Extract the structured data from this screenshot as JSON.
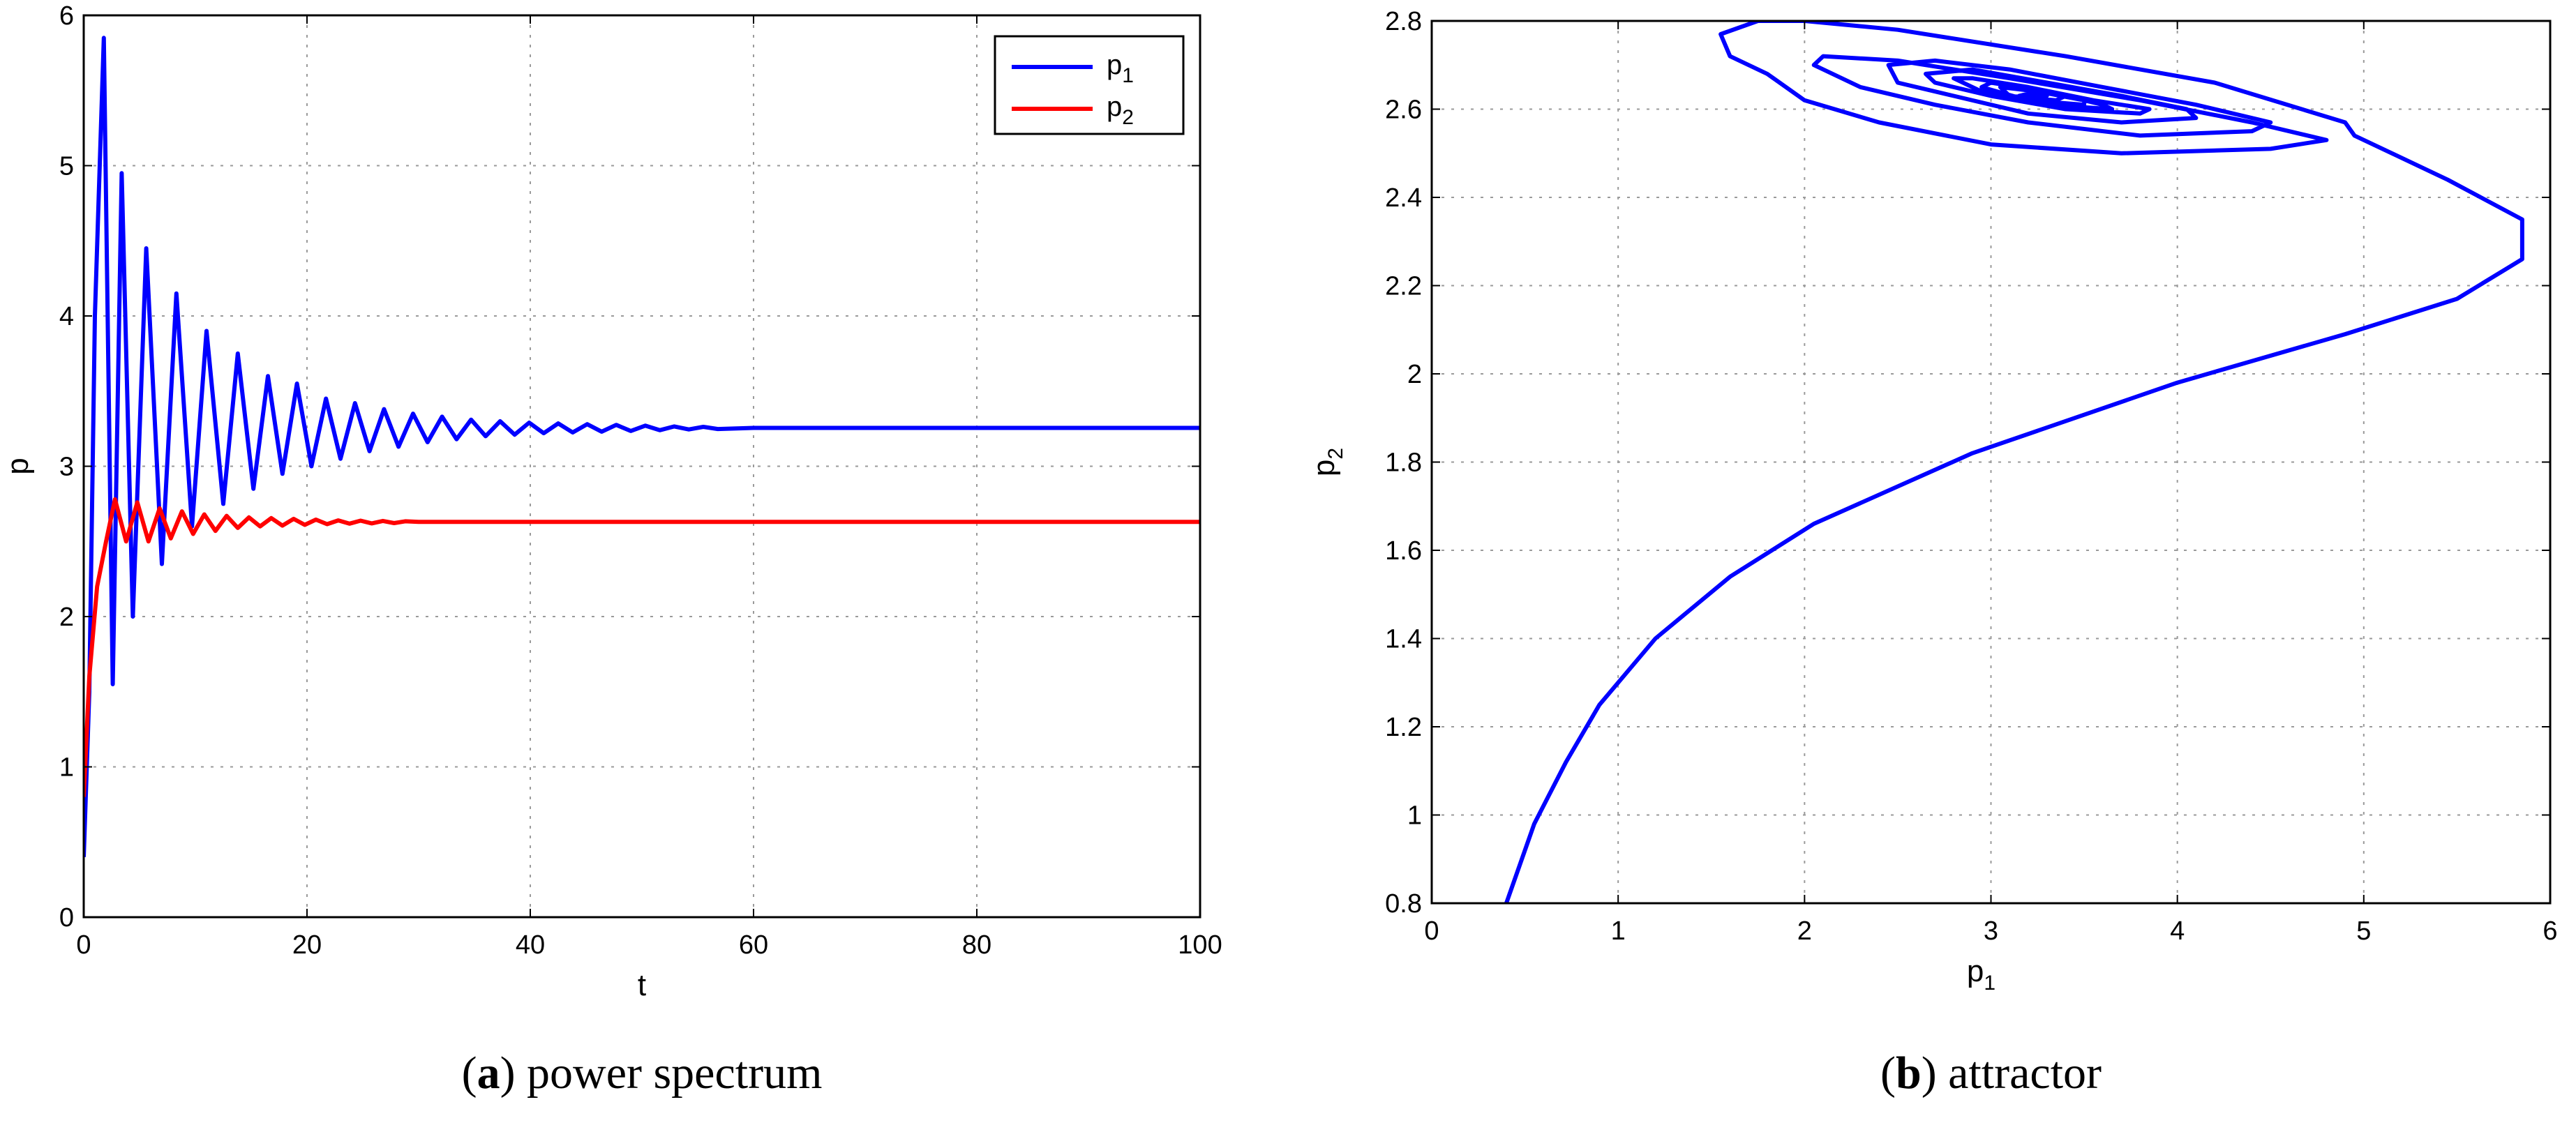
{
  "chart_data": [
    {
      "type": "line",
      "xlabel": "t",
      "ylabel": "p",
      "xlim": [
        0,
        100
      ],
      "ylim": [
        0,
        6
      ],
      "xticks": [
        0,
        20,
        40,
        60,
        80,
        100
      ],
      "yticks": [
        0,
        1,
        2,
        3,
        4,
        5,
        6
      ],
      "grid": true,
      "legend_position": "top-right",
      "caption": {
        "letter": "a",
        "text": " power spectrum"
      },
      "series": [
        {
          "name": "p1",
          "label_main": "p",
          "label_sub": "1",
          "color": "#0000ff",
          "x": [
            0,
            0.5,
            1,
            1.8,
            2.6,
            3.4,
            4.4,
            5.6,
            7.0,
            8.3,
            9.7,
            11.0,
            12.5,
            13.8,
            15.2,
            16.5,
            17.8,
            19.1,
            20.4,
            21.7,
            23.0,
            24.3,
            25.6,
            26.9,
            28.2,
            29.5,
            30.8,
            32.1,
            33.4,
            34.7,
            36.0,
            37.3,
            38.6,
            39.9,
            41.2,
            42.5,
            43.8,
            45.1,
            46.4,
            47.7,
            49.0,
            50.3,
            51.6,
            52.9,
            54.2,
            55.5,
            56.8,
            60,
            80,
            100
          ],
          "y": [
            0.4,
            1.5,
            4.0,
            5.85,
            1.55,
            4.95,
            2.0,
            4.45,
            2.35,
            4.15,
            2.6,
            3.9,
            2.75,
            3.75,
            2.85,
            3.6,
            2.95,
            3.55,
            3.0,
            3.45,
            3.05,
            3.42,
            3.1,
            3.38,
            3.13,
            3.35,
            3.16,
            3.33,
            3.18,
            3.31,
            3.2,
            3.3,
            3.21,
            3.29,
            3.22,
            3.285,
            3.225,
            3.28,
            3.23,
            3.275,
            3.235,
            3.27,
            3.24,
            3.265,
            3.245,
            3.262,
            3.248,
            3.255,
            3.255,
            3.255
          ]
        },
        {
          "name": "p2",
          "label_main": "p",
          "label_sub": "2",
          "color": "#ff0000",
          "x": [
            0,
            0.5,
            1.2,
            2.0,
            2.8,
            3.8,
            4.8,
            5.8,
            6.8,
            7.8,
            8.8,
            9.8,
            10.8,
            11.8,
            12.8,
            13.8,
            14.8,
            15.8,
            16.8,
            17.8,
            18.8,
            19.8,
            20.8,
            21.8,
            22.8,
            23.8,
            24.8,
            25.8,
            26.8,
            27.8,
            28.8,
            30,
            40,
            60,
            80,
            100
          ],
          "y": [
            0.8,
            1.6,
            2.2,
            2.5,
            2.78,
            2.5,
            2.76,
            2.5,
            2.72,
            2.52,
            2.7,
            2.55,
            2.68,
            2.57,
            2.67,
            2.59,
            2.66,
            2.6,
            2.655,
            2.605,
            2.65,
            2.61,
            2.645,
            2.615,
            2.64,
            2.618,
            2.638,
            2.62,
            2.636,
            2.622,
            2.634,
            2.63,
            2.63,
            2.63,
            2.63,
            2.63
          ]
        }
      ]
    },
    {
      "type": "line",
      "xlabel_main": "p",
      "xlabel_sub": "1",
      "ylabel_main": "p",
      "ylabel_sub": "2",
      "xlim": [
        0,
        6
      ],
      "ylim": [
        0.8,
        2.8
      ],
      "xticks": [
        0,
        1,
        2,
        3,
        4,
        5,
        6
      ],
      "yticks": [
        "0.8",
        "1",
        "1.2",
        "1.4",
        "1.6",
        "1.8",
        "2",
        "2.2",
        "2.4",
        "2.6",
        "2.8"
      ],
      "grid": true,
      "caption": {
        "letter": "b",
        "text": " attractor"
      },
      "series": [
        {
          "color": "#0000ff",
          "x": [
            0.4,
            0.55,
            0.72,
            0.9,
            1.2,
            1.6,
            2.05,
            2.9,
            4.0,
            4.9,
            5.5,
            5.85,
            5.85,
            5.45,
            4.95,
            4.9,
            4.2,
            3.4,
            2.5,
            2.0,
            1.75,
            1.55,
            1.6,
            1.8,
            2.0,
            2.4,
            3.0,
            3.7,
            4.5,
            4.8,
            4.4,
            3.8,
            3.1,
            2.5,
            2.1,
            2.05,
            2.3,
            2.7,
            3.2,
            3.8,
            4.4,
            4.5,
            4.1,
            3.6,
            3.1,
            2.7,
            2.45,
            2.5,
            2.8,
            3.2,
            3.7,
            4.1,
            4.05,
            3.7,
            3.3,
            2.9,
            2.65,
            2.7,
            3.0,
            3.4,
            3.8,
            3.85,
            3.55,
            3.2,
            2.9,
            2.8,
            2.95,
            3.3,
            3.65,
            3.6,
            3.3,
            3.0,
            2.95,
            3.2,
            3.5,
            3.5,
            3.25,
            3.05,
            3.1,
            3.35,
            3.4,
            3.25,
            3.15,
            3.2,
            3.3,
            3.26
          ],
          "y": [
            0.8,
            0.98,
            1.12,
            1.25,
            1.4,
            1.54,
            1.66,
            1.82,
            1.98,
            2.09,
            2.17,
            2.26,
            2.35,
            2.44,
            2.54,
            2.57,
            2.66,
            2.72,
            2.78,
            2.8,
            2.8,
            2.77,
            2.72,
            2.68,
            2.62,
            2.57,
            2.52,
            2.5,
            2.51,
            2.53,
            2.57,
            2.62,
            2.67,
            2.71,
            2.72,
            2.7,
            2.65,
            2.61,
            2.57,
            2.54,
            2.55,
            2.57,
            2.61,
            2.65,
            2.69,
            2.71,
            2.7,
            2.66,
            2.63,
            2.59,
            2.57,
            2.58,
            2.6,
            2.63,
            2.66,
            2.69,
            2.68,
            2.66,
            2.63,
            2.6,
            2.59,
            2.6,
            2.62,
            2.65,
            2.67,
            2.67,
            2.64,
            2.61,
            2.6,
            2.61,
            2.64,
            2.66,
            2.65,
            2.62,
            2.61,
            2.62,
            2.64,
            2.65,
            2.63,
            2.62,
            2.63,
            2.64,
            2.63,
            2.63,
            2.63,
            2.632
          ]
        }
      ]
    }
  ]
}
